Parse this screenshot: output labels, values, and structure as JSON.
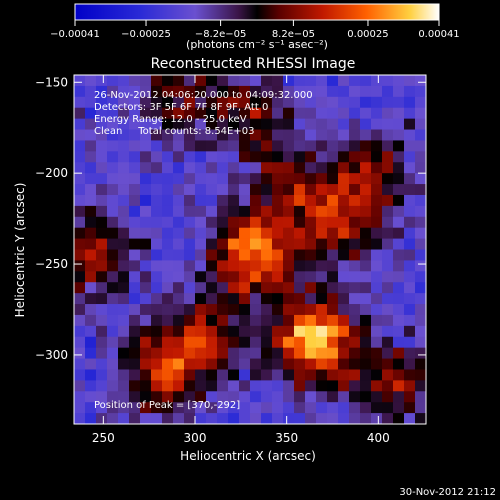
{
  "chart_data": {
    "type": "heatmap",
    "title": "Reconstructed RHESSI Image",
    "xlabel": "Heliocentric X (arcsec)",
    "ylabel": "Heliocentric Y (arcsec)",
    "xlim": [
      234,
      426
    ],
    "ylim": [
      -338,
      -146
    ],
    "xticks": [
      250,
      300,
      350,
      400
    ],
    "yticks": [
      -150,
      -200,
      -250,
      -300
    ],
    "colorbar": {
      "unit_label": "(photons cm⁻² s⁻¹ asec⁻²)",
      "range": [
        -0.00041,
        0.00041
      ],
      "ticks": [
        {
          "value": -0.00041,
          "label": "−0.00041"
        },
        {
          "value": -0.00025,
          "label": "−0.00025"
        },
        {
          "value": -8.2e-05,
          "label": "−8.2e−05"
        },
        {
          "value": 8.2e-05,
          "label": "8.2e−05"
        },
        {
          "value": 0.00025,
          "label": "0.00025"
        },
        {
          "value": 0.00041,
          "label": "0.00041"
        }
      ]
    },
    "annotations": [
      "26-Nov-2012 04:06:20.000 to 04:09:32.000",
      "Detectors: 3F 5F 6F 7F 8F 9F, Att 0",
      "Energy Range: 12.0 - 25.0 keV",
      "Clean     Total counts: 8.54E+03"
    ],
    "peak_label": "Position of Peak = [370,-292]",
    "peak": {
      "x": 370,
      "y": -292
    },
    "sources": [
      {
        "x": 332,
        "y": -245,
        "amp": 0.00034
      },
      {
        "x": 365,
        "y": -292,
        "amp": 0.00041
      },
      {
        "x": 378,
        "y": -228,
        "amp": 0.0002
      },
      {
        "x": 282,
        "y": -310,
        "amp": 0.00022
      },
      {
        "x": 304,
        "y": -290,
        "amp": 0.00016
      },
      {
        "x": 244,
        "y": -245,
        "amp": 0.00018
      },
      {
        "x": 396,
        "y": -200,
        "amp": 0.00014
      },
      {
        "x": 408,
        "y": -315,
        "amp": 0.00015
      },
      {
        "x": 290,
        "y": -160,
        "amp": 0.0001
      },
      {
        "x": 330,
        "y": -168,
        "amp": 0.00012
      },
      {
        "x": 350,
        "y": -205,
        "amp": 0.00012
      }
    ],
    "background": -0.00018,
    "timestamp": "30-Nov-2012 21:12"
  }
}
